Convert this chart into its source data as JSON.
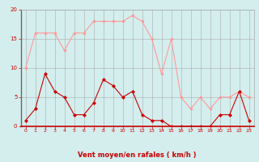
{
  "x": [
    0,
    1,
    2,
    3,
    4,
    5,
    6,
    7,
    8,
    9,
    10,
    11,
    12,
    13,
    14,
    15,
    16,
    17,
    18,
    19,
    20,
    21,
    22,
    23
  ],
  "wind_avg": [
    1,
    3,
    9,
    6,
    5,
    2,
    2,
    4,
    8,
    7,
    5,
    6,
    2,
    1,
    1,
    0,
    0,
    0,
    0,
    0,
    2,
    2,
    6,
    1
  ],
  "wind_gust": [
    10,
    16,
    16,
    16,
    13,
    16,
    16,
    18,
    18,
    18,
    18,
    19,
    18,
    15,
    9,
    15,
    5,
    3,
    5,
    3,
    5,
    5,
    6,
    5
  ],
  "bg_color": "#d4eeee",
  "avg_color": "#cc0000",
  "gust_color": "#ff9999",
  "grid_color": "#aaaaaa",
  "xlabel": "Vent moyen/en rafales ( km/h )",
  "xlabel_color": "#cc0000",
  "tick_color": "#cc0000",
  "ylim": [
    0,
    20
  ],
  "xlim": [
    -0.5,
    23.5
  ],
  "yticks": [
    0,
    5,
    10,
    15,
    20
  ],
  "xticks": [
    0,
    1,
    2,
    3,
    4,
    5,
    6,
    7,
    8,
    9,
    10,
    11,
    12,
    13,
    14,
    15,
    16,
    17,
    18,
    19,
    20,
    21,
    22,
    23
  ]
}
